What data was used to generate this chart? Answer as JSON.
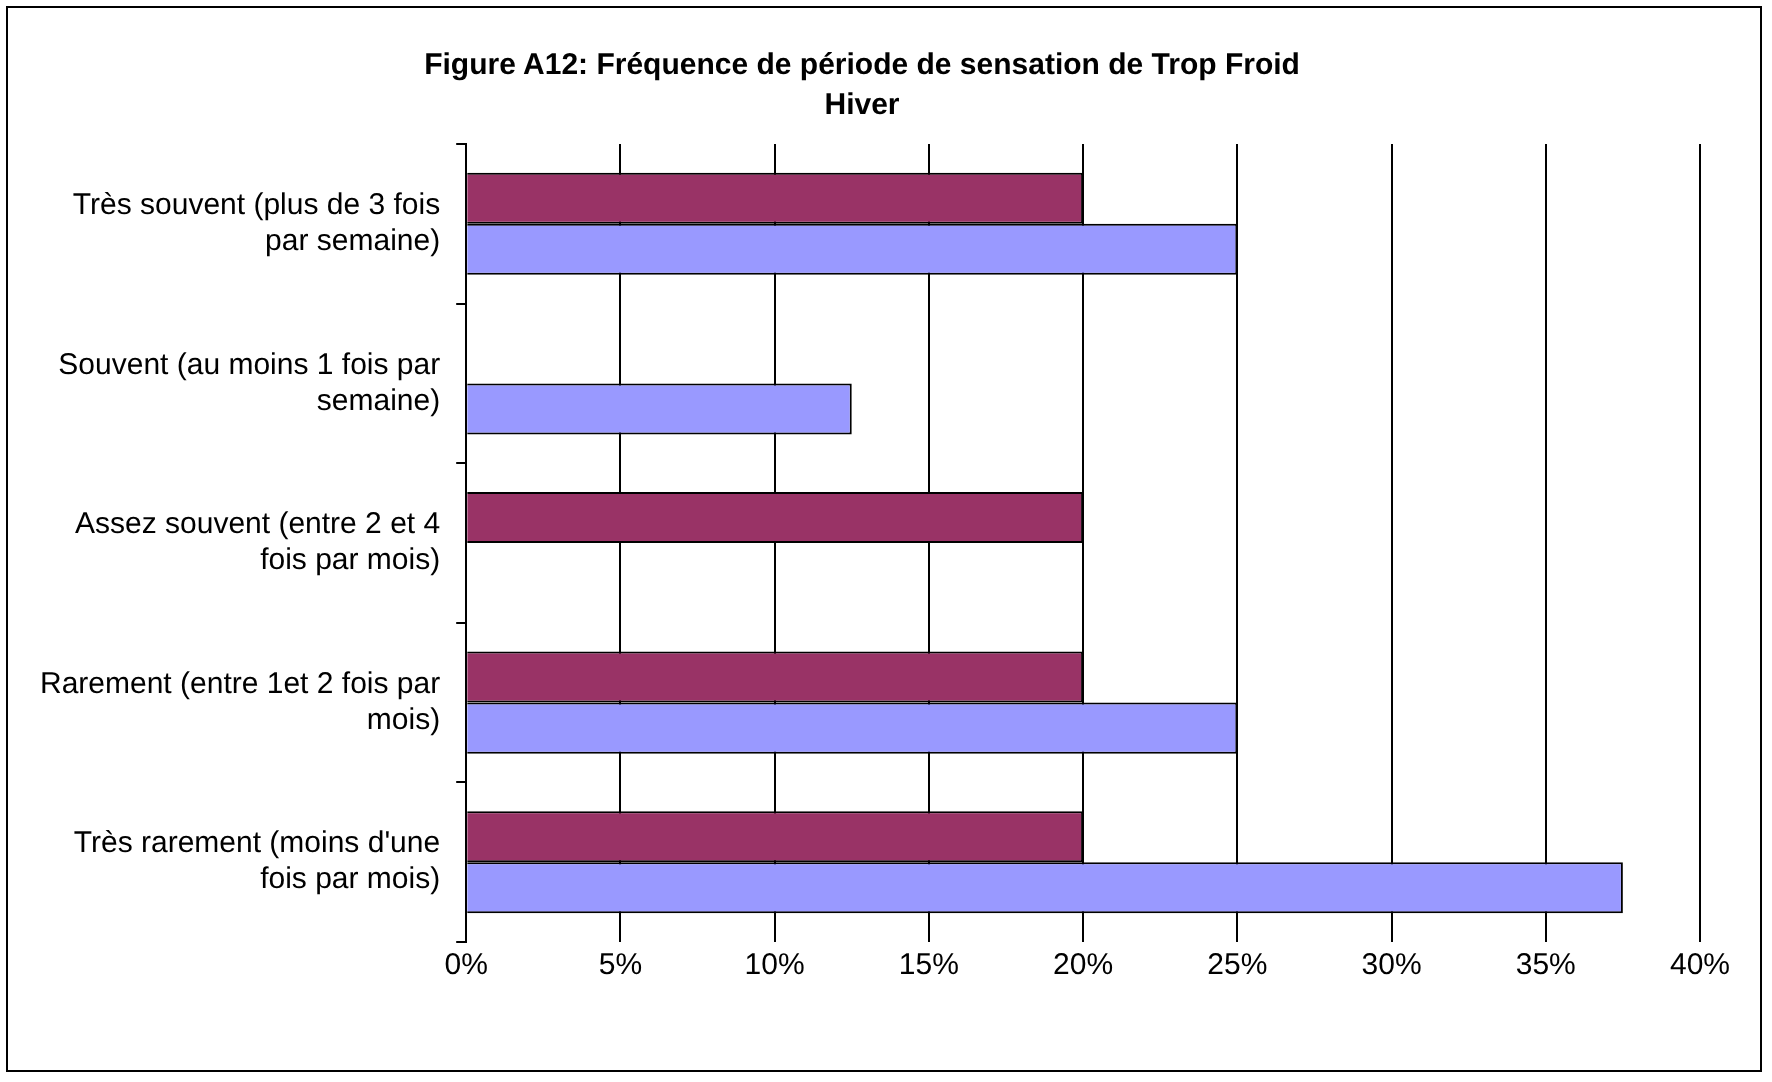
{
  "chart_data": {
    "type": "bar",
    "orientation": "horizontal",
    "title": "Figure A12: Fréquence de période de sensation de Trop Froid",
    "subtitle": "Hiver",
    "categories": [
      "Très souvent (plus de 3 fois par semaine)",
      "Souvent (au moins 1 fois par semaine)",
      "Assez souvent (entre 2 et 4 fois par mois)",
      "Rarement (entre 1et 2 fois par mois)",
      "Très rarement (moins d'une fois par mois)"
    ],
    "series": [
      {
        "color": "#993366",
        "values": [
          20,
          null,
          20,
          20,
          20
        ]
      },
      {
        "color": "#9999ff",
        "values": [
          25,
          12.5,
          null,
          25,
          37.5
        ]
      }
    ],
    "xlim": [
      0,
      40
    ],
    "xticks": [
      {
        "value": 0,
        "label": "0%"
      },
      {
        "value": 5,
        "label": "5%"
      },
      {
        "value": 10,
        "label": "10%"
      },
      {
        "value": 15,
        "label": "15%"
      },
      {
        "value": 20,
        "label": "20%"
      },
      {
        "value": 25,
        "label": "25%"
      },
      {
        "value": 30,
        "label": "30%"
      },
      {
        "value": 35,
        "label": "35%"
      },
      {
        "value": 40,
        "label": "40%"
      }
    ],
    "grid": "x",
    "legend": false
  }
}
